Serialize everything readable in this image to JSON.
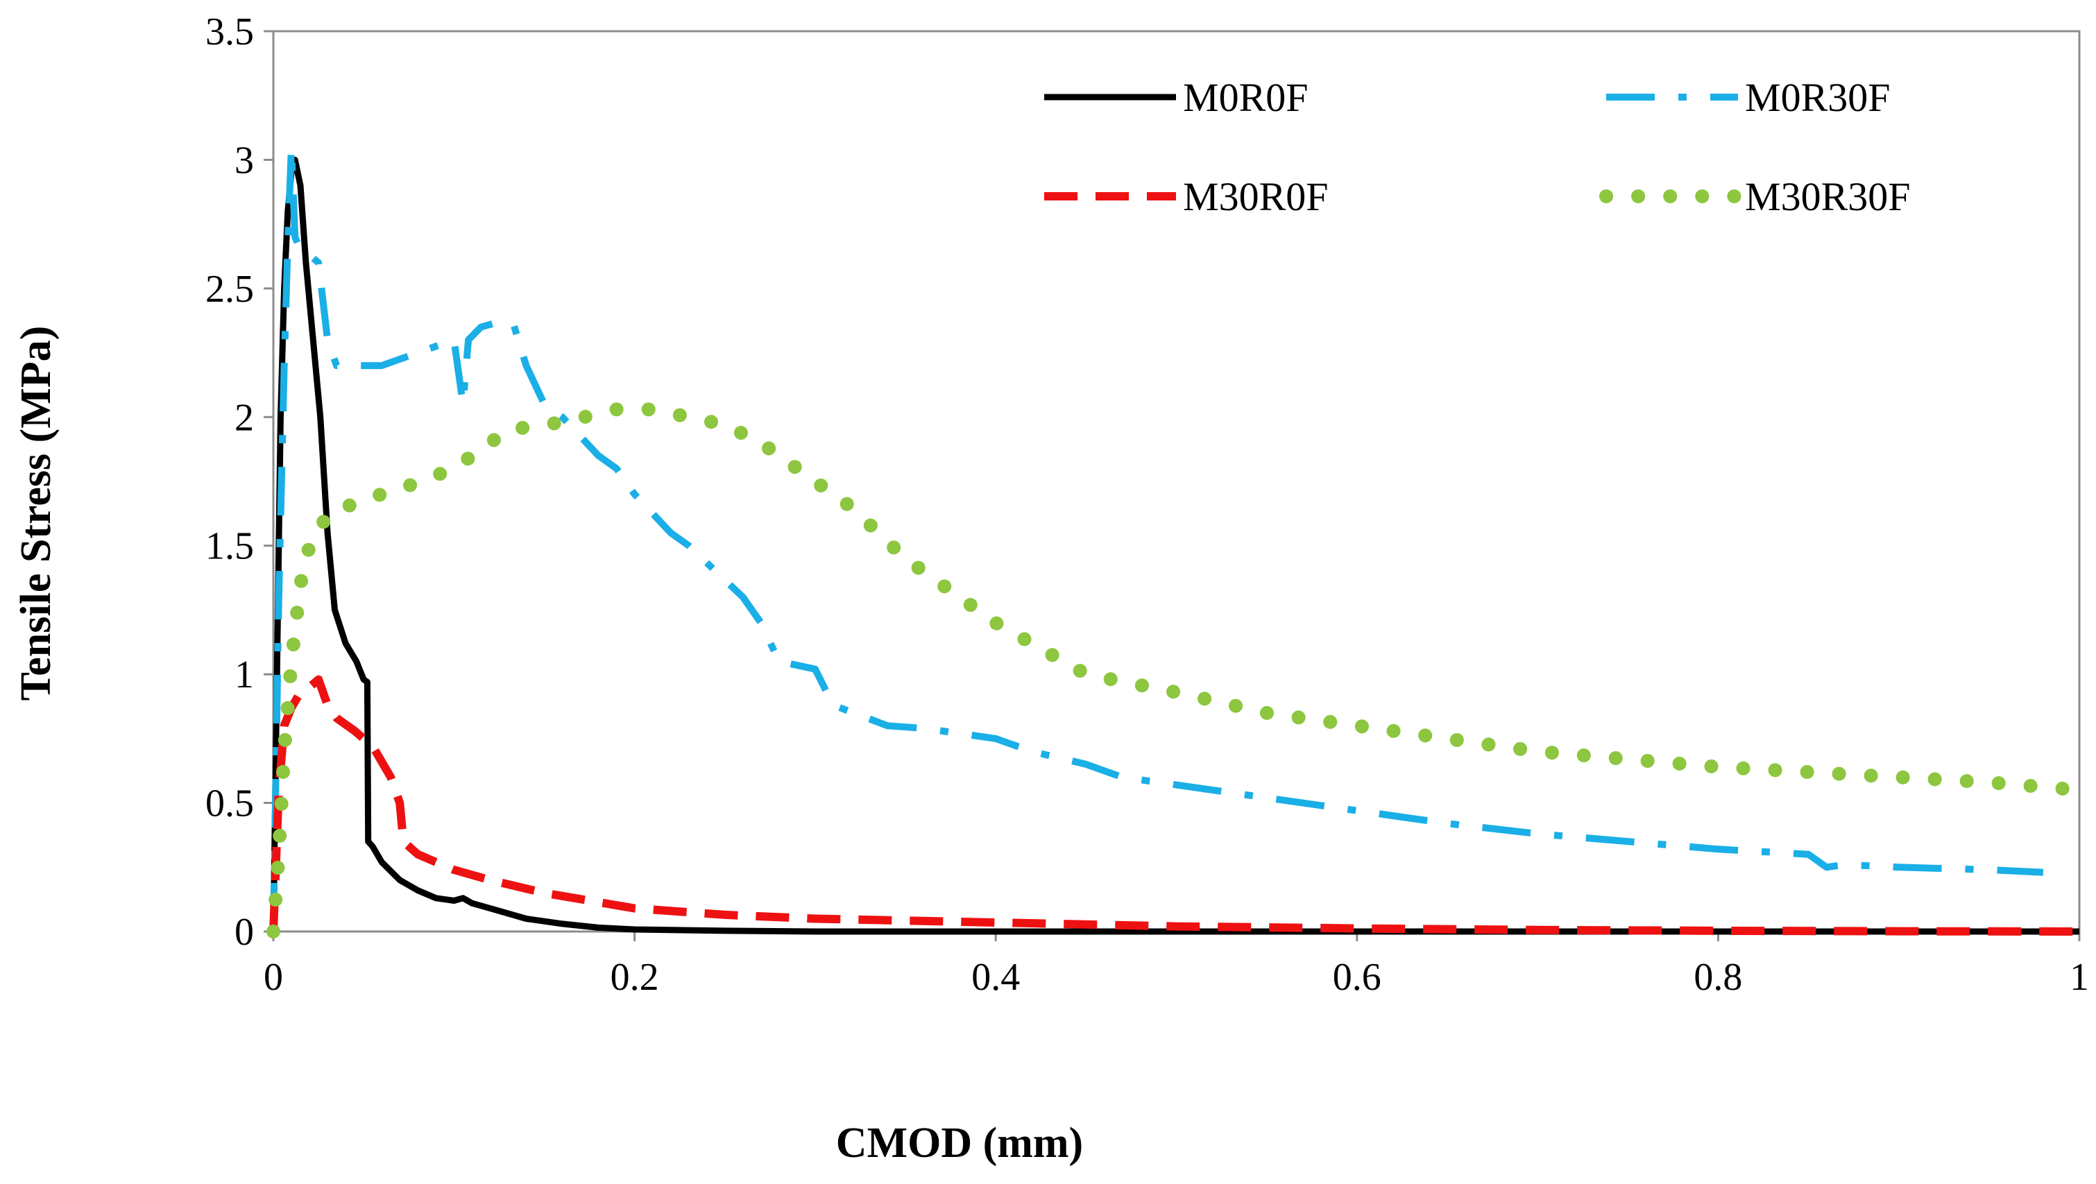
{
  "chart_data": {
    "type": "line",
    "title": "",
    "xlabel": "CMOD (mm)",
    "ylabel": "Tensile Stress (MPa)",
    "xlim": [
      0,
      1
    ],
    "ylim": [
      0,
      3.5
    ],
    "x_ticks": [
      "0",
      "0.2",
      "0.4",
      "0.6",
      "0.8",
      "1"
    ],
    "y_ticks": [
      "0",
      "0.5",
      "1",
      "1.5",
      "2",
      "2.5",
      "3",
      "3.5"
    ],
    "grid": false,
    "legend_position": "top-right",
    "series": [
      {
        "name": "M0R0F",
        "color": "#000000",
        "style": "solid",
        "x": [
          0,
          0.002,
          0.004,
          0.006,
          0.008,
          0.01,
          0.012,
          0.015,
          0.018,
          0.022,
          0.026,
          0.03,
          0.034,
          0.04,
          0.046,
          0.05,
          0.052,
          0.0525,
          0.055,
          0.06,
          0.07,
          0.08,
          0.09,
          0.1,
          0.105,
          0.11,
          0.12,
          0.14,
          0.16,
          0.18,
          0.2,
          0.25,
          0.3,
          0.4,
          0.5,
          0.6,
          0.8,
          1.0
        ],
        "y": [
          0,
          1.0,
          2.0,
          2.5,
          2.8,
          2.95,
          3.0,
          2.9,
          2.6,
          2.3,
          2.0,
          1.55,
          1.25,
          1.12,
          1.05,
          0.98,
          0.97,
          0.35,
          0.33,
          0.27,
          0.2,
          0.16,
          0.13,
          0.12,
          0.13,
          0.11,
          0.09,
          0.05,
          0.03,
          0.015,
          0.008,
          0.003,
          0,
          0,
          0,
          0,
          0,
          0
        ]
      },
      {
        "name": "M0R30F",
        "color": "#1AAFE6",
        "style": "dash-dot",
        "x": [
          0,
          0.003,
          0.006,
          0.008,
          0.01,
          0.012,
          0.015,
          0.02,
          0.025,
          0.03,
          0.035,
          0.045,
          0.06,
          0.08,
          0.1,
          0.105,
          0.108,
          0.115,
          0.125,
          0.133,
          0.14,
          0.15,
          0.16,
          0.18,
          0.19,
          0.2,
          0.22,
          0.23,
          0.26,
          0.27,
          0.28,
          0.3,
          0.31,
          0.34,
          0.36,
          0.4,
          0.42,
          0.45,
          0.47,
          0.5,
          0.55,
          0.6,
          0.65,
          0.7,
          0.75,
          0.8,
          0.85,
          0.86,
          0.87,
          0.9,
          0.95,
          0.98
        ],
        "y": [
          0,
          1.3,
          2.2,
          2.68,
          3.05,
          2.7,
          2.65,
          2.63,
          2.6,
          2.3,
          2.2,
          2.2,
          2.2,
          2.25,
          2.3,
          2.05,
          2.3,
          2.35,
          2.37,
          2.36,
          2.2,
          2.05,
          2.0,
          1.85,
          1.8,
          1.7,
          1.55,
          1.5,
          1.3,
          1.2,
          1.05,
          1.02,
          0.88,
          0.8,
          0.79,
          0.75,
          0.7,
          0.65,
          0.6,
          0.57,
          0.52,
          0.47,
          0.42,
          0.38,
          0.35,
          0.32,
          0.3,
          0.25,
          0.26,
          0.25,
          0.24,
          0.23
        ]
      },
      {
        "name": "M30R0F",
        "color": "#EE1111",
        "style": "dashed",
        "x": [
          0,
          0.003,
          0.006,
          0.01,
          0.015,
          0.02,
          0.025,
          0.03,
          0.035,
          0.045,
          0.055,
          0.065,
          0.07,
          0.072,
          0.08,
          0.1,
          0.12,
          0.15,
          0.2,
          0.25,
          0.3,
          0.4,
          0.5,
          0.6,
          0.7,
          0.8,
          0.9,
          1.0
        ],
        "y": [
          0,
          0.55,
          0.8,
          0.87,
          0.93,
          0.95,
          0.98,
          0.88,
          0.83,
          0.78,
          0.72,
          0.6,
          0.5,
          0.35,
          0.3,
          0.24,
          0.2,
          0.15,
          0.09,
          0.065,
          0.05,
          0.035,
          0.02,
          0.012,
          0.006,
          0.003,
          0.001,
          0
        ]
      },
      {
        "name": "M30R30F",
        "color": "#8DC63F",
        "style": "dotted",
        "x": [
          0,
          0.003,
          0.006,
          0.01,
          0.015,
          0.02,
          0.03,
          0.05,
          0.07,
          0.1,
          0.13,
          0.16,
          0.19,
          0.21,
          0.23,
          0.25,
          0.27,
          0.29,
          0.32,
          0.35,
          0.4,
          0.45,
          0.5,
          0.55,
          0.6,
          0.65,
          0.7,
          0.75,
          0.8,
          0.85,
          0.9,
          0.95,
          1.0
        ],
        "y": [
          0,
          0.3,
          0.7,
          1.05,
          1.35,
          1.5,
          1.62,
          1.68,
          1.72,
          1.8,
          1.95,
          1.98,
          2.03,
          2.03,
          2.0,
          1.97,
          1.9,
          1.8,
          1.65,
          1.45,
          1.2,
          1.0,
          0.93,
          0.85,
          0.8,
          0.75,
          0.7,
          0.67,
          0.64,
          0.62,
          0.6,
          0.58,
          0.55
        ]
      }
    ]
  }
}
